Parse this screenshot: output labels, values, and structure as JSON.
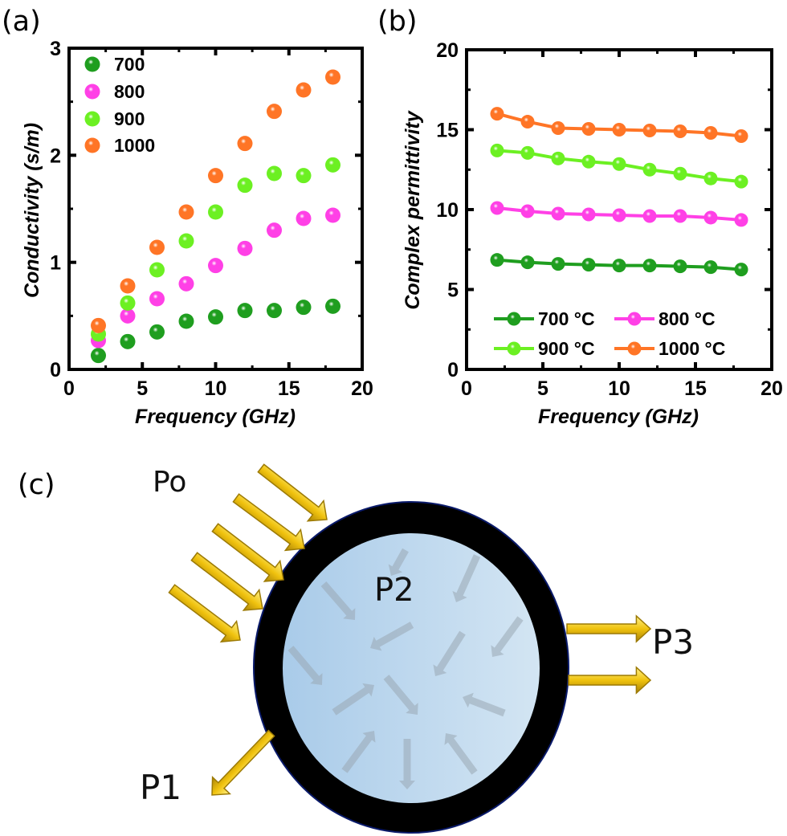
{
  "panels": {
    "a": "(a)",
    "b": "(b)",
    "c": "(c)"
  },
  "colors": {
    "700": "#1f9e1f",
    "800": "#ff40e6",
    "900": "#6cf022",
    "1000": "#ff7526"
  },
  "chart_data": [
    {
      "type": "scatter",
      "panel": "(a)",
      "xlabel": "Frequency (GHz)",
      "ylabel": "Conductivity (s/m)",
      "xlim": [
        0,
        20
      ],
      "ylim": [
        0,
        3
      ],
      "xticks": [
        "0",
        "5",
        "10",
        "15",
        "20"
      ],
      "yticks": [
        "0",
        "1",
        "2",
        "3"
      ],
      "legend_position": "top-left",
      "x": [
        2,
        4,
        6,
        8,
        10,
        12,
        14,
        16,
        18
      ],
      "series": [
        {
          "name": "700",
          "color": "#1f9e1f",
          "values": [
            0.13,
            0.26,
            0.35,
            0.45,
            0.49,
            0.55,
            0.55,
            0.58,
            0.59
          ]
        },
        {
          "name": "800",
          "color": "#ff40e6",
          "values": [
            0.27,
            0.5,
            0.66,
            0.8,
            0.97,
            1.13,
            1.3,
            1.41,
            1.44
          ]
        },
        {
          "name": "900",
          "color": "#6cf022",
          "values": [
            0.33,
            0.62,
            0.93,
            1.2,
            1.47,
            1.72,
            1.83,
            1.81,
            1.91
          ]
        },
        {
          "name": "1000",
          "color": "#ff7526",
          "values": [
            0.41,
            0.78,
            1.14,
            1.47,
            1.81,
            2.11,
            2.41,
            2.61,
            2.73
          ]
        }
      ]
    },
    {
      "type": "line",
      "panel": "(b)",
      "xlabel": "Frequency (GHz)",
      "ylabel": "Complex permittivity",
      "xlim": [
        0,
        20
      ],
      "ylim": [
        0,
        20
      ],
      "xticks": [
        "0",
        "5",
        "10",
        "15",
        "20"
      ],
      "yticks": [
        "0",
        "5",
        "10",
        "15",
        "20"
      ],
      "legend_position": "bottom",
      "x": [
        2,
        4,
        6,
        8,
        10,
        12,
        14,
        16,
        18
      ],
      "series": [
        {
          "name": "700 °C",
          "color": "#1f9e1f",
          "values": [
            6.85,
            6.7,
            6.6,
            6.55,
            6.5,
            6.5,
            6.45,
            6.4,
            6.25
          ]
        },
        {
          "name": "800 °C",
          "color": "#ff40e6",
          "values": [
            10.1,
            9.9,
            9.75,
            9.7,
            9.65,
            9.6,
            9.6,
            9.5,
            9.35
          ]
        },
        {
          "name": "900 °C",
          "color": "#6cf022",
          "values": [
            13.7,
            13.55,
            13.2,
            13.0,
            12.85,
            12.5,
            12.25,
            11.95,
            11.75
          ]
        },
        {
          "name": "1000 °C",
          "color": "#ff7526",
          "values": [
            16.0,
            15.5,
            15.1,
            15.05,
            15.0,
            14.95,
            14.9,
            14.8,
            14.6
          ]
        }
      ]
    }
  ],
  "diagram": {
    "labels": {
      "incident": "Po",
      "reflected": "P1",
      "absorbed": "P2",
      "transmitted": "P3"
    },
    "colors": {
      "arrow": "#f2c81a",
      "shell": "#000000",
      "core": "#b8d6ee",
      "inner_arrow": "#9aa8b4"
    }
  }
}
